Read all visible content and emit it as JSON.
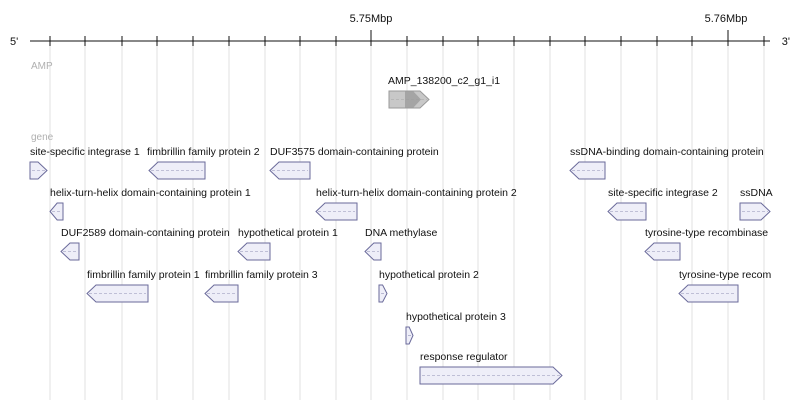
{
  "ruler": {
    "left_label": "5'",
    "right_label": "3'",
    "major_ticks": [
      "5.75Mbp",
      "5.76Mbp"
    ]
  },
  "tracks": [
    {
      "id": "amp",
      "label": "AMP",
      "features": [
        {
          "name": "AMP_138200_c2_g1_i1",
          "strand": "+",
          "row": 0
        }
      ]
    },
    {
      "id": "gene",
      "label": "gene",
      "features": [
        {
          "name": "site-specific integrase 1",
          "strand": "+",
          "row": 0
        },
        {
          "name": "fimbrillin family protein 2",
          "strand": "-",
          "row": 0
        },
        {
          "name": "DUF3575 domain-containing protein",
          "strand": "-",
          "row": 0
        },
        {
          "name": "ssDNA-binding domain-containing protein",
          "strand": "-",
          "row": 0
        },
        {
          "name": "helix-turn-helix domain-containing protein 1",
          "strand": "-",
          "row": 1
        },
        {
          "name": "helix-turn-helix domain-containing protein 2",
          "strand": "-",
          "row": 1
        },
        {
          "name": "site-specific integrase 2",
          "strand": "-",
          "row": 1
        },
        {
          "name": "ssDNA",
          "strand": "+",
          "row": 1
        },
        {
          "name": "DUF2589 domain-containing protein",
          "strand": "-",
          "row": 2
        },
        {
          "name": "hypothetical protein 1",
          "strand": "-",
          "row": 2
        },
        {
          "name": "DNA methylase",
          "strand": "-",
          "row": 2
        },
        {
          "name": "tyrosine-type recombinase",
          "strand": "-",
          "row": 2
        },
        {
          "name": "fimbrillin family protein 1",
          "strand": "-",
          "row": 3
        },
        {
          "name": "fimbrillin family protein 3",
          "strand": "-",
          "row": 3
        },
        {
          "name": "hypothetical protein 2",
          "strand": "+",
          "row": 3
        },
        {
          "name": "tyrosine-type recom",
          "strand": "-",
          "row": 3
        },
        {
          "name": "hypothetical protein 3",
          "strand": "+",
          "row": 4
        },
        {
          "name": "response regulator",
          "strand": "+",
          "row": 5
        }
      ]
    }
  ],
  "colors": {
    "gene_fill": "#eeeef8",
    "gene_stroke": "#6a6a9a",
    "amp_fill": "#c8c8c8",
    "amp_dark": "#9a9a9a",
    "grid": "#e2e2e2",
    "track_label": "#b0b0b0",
    "text": "#111111"
  }
}
